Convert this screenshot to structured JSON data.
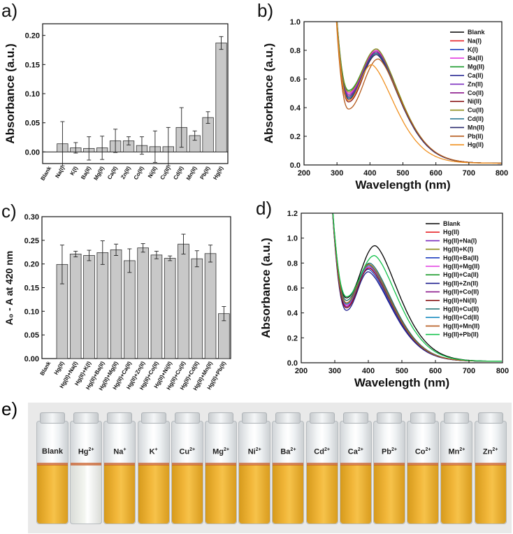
{
  "panels": {
    "a": {
      "label": "a)",
      "chart_data": {
        "type": "bar",
        "ylabel": "Absorbance (a.u.)",
        "ylim": [
          -0.02,
          0.22
        ],
        "yticks": [
          0.0,
          0.05,
          0.1,
          0.15,
          0.2
        ],
        "ytick_labels": [
          "0.00",
          "0.05",
          "0.10",
          "0.15",
          "0.20"
        ],
        "categories": [
          "Blank",
          "Na(I)",
          "K(I)",
          "Ba(II)",
          "Mg(II)",
          "Ca(II)",
          "Zn(II)",
          "Co(II)",
          "Ni(II)",
          "Cu(II)",
          "Cd(II)",
          "Mn(II)",
          "Pb(II)",
          "Hg(II)"
        ],
        "values": [
          0.0,
          0.014,
          0.007,
          0.006,
          0.007,
          0.019,
          0.019,
          0.011,
          0.009,
          0.009,
          0.042,
          0.028,
          0.059,
          0.187
        ],
        "errors": [
          0.0,
          0.038,
          0.009,
          0.02,
          0.02,
          0.02,
          0.007,
          0.015,
          0.027,
          0.033,
          0.034,
          0.008,
          0.01,
          0.011
        ]
      }
    },
    "b": {
      "label": "b)",
      "chart_data": {
        "type": "line",
        "xlabel": "Wavelength (nm)",
        "ylabel": "Absorbance (a.u.)",
        "xlim": [
          200,
          800
        ],
        "ylim": [
          0.0,
          1.0
        ],
        "xticks": [
          200,
          300,
          400,
          500,
          600,
          700,
          800
        ],
        "yticks": [
          0.0,
          0.2,
          0.4,
          0.6,
          0.8,
          1.0
        ],
        "ytick_labels": [
          "0.0",
          "0.2",
          "0.4",
          "0.6",
          "0.8",
          "1.0"
        ],
        "series": [
          {
            "name": "Blank",
            "color": "#000000",
            "min": 0.48,
            "peak": 0.79,
            "peak_x": 420
          },
          {
            "name": "Na(I)",
            "color": "#e8262b",
            "min": 0.5,
            "peak": 0.8,
            "peak_x": 420
          },
          {
            "name": "K(I)",
            "color": "#1f3fbf",
            "min": 0.47,
            "peak": 0.79,
            "peak_x": 420
          },
          {
            "name": "Ba(II)",
            "color": "#e23ce0",
            "min": 0.5,
            "peak": 0.8,
            "peak_x": 420
          },
          {
            "name": "Mg(II)",
            "color": "#1a9a2a",
            "min": 0.52,
            "peak": 0.81,
            "peak_x": 420
          },
          {
            "name": "Ca(II)",
            "color": "#1a1a8c",
            "min": 0.46,
            "peak": 0.78,
            "peak_x": 420
          },
          {
            "name": "Zn(II)",
            "color": "#7b2fbf",
            "min": 0.49,
            "peak": 0.79,
            "peak_x": 420
          },
          {
            "name": "Co(II)",
            "color": "#8c1a8c",
            "min": 0.48,
            "peak": 0.79,
            "peak_x": 420
          },
          {
            "name": "Ni(II)",
            "color": "#8b1a1a",
            "min": 0.44,
            "peak": 0.77,
            "peak_x": 420
          },
          {
            "name": "Cu(II)",
            "color": "#8c8c1a",
            "min": 0.51,
            "peak": 0.81,
            "peak_x": 420
          },
          {
            "name": "Cd(II)",
            "color": "#1a6e8c",
            "min": 0.47,
            "peak": 0.78,
            "peak_x": 420
          },
          {
            "name": "Mn(II)",
            "color": "#2a2a6e",
            "min": 0.46,
            "peak": 0.77,
            "peak_x": 420
          },
          {
            "name": "Pb(II)",
            "color": "#b5591a",
            "min": 0.39,
            "peak": 0.74,
            "peak_x": 425
          },
          {
            "name": "Hg(II)",
            "color": "#f0901f",
            "min": 0.45,
            "peak": 0.7,
            "peak_x": 405
          }
        ]
      }
    },
    "c": {
      "label": "c)",
      "chart_data": {
        "type": "bar",
        "ylabel": "A₀ - A at 420 nm",
        "ylim": [
          0.0,
          0.3
        ],
        "yticks": [
          0.0,
          0.05,
          0.1,
          0.15,
          0.2,
          0.25,
          0.3
        ],
        "ytick_labels": [
          "0.00",
          "0.05",
          "0.10",
          "0.15",
          "0.20",
          "0.25",
          "0.30"
        ],
        "categories": [
          "Blank",
          "Hg(II)",
          "Hg(II)+Na(I)",
          "Hg(II)+K(I)",
          "Hg(II)+Ba(II)",
          "Hg(II)+Mg(II)",
          "Hg(II)+Ca(II)",
          "Hg(II)+Zn(II)",
          "Hg(II)+Co(II)",
          "Hg(II)+Ni(II)",
          "Hg(II)+Cu(II)",
          "Hg(II)+Cd(II)",
          "Hg(II)+Mn(II)",
          "Hg(II)+Pb(II)"
        ],
        "values": [
          0.0,
          0.199,
          0.221,
          0.218,
          0.224,
          0.23,
          0.207,
          0.234,
          0.219,
          0.212,
          0.242,
          0.211,
          0.222,
          0.095
        ],
        "errors": [
          0.0,
          0.041,
          0.006,
          0.011,
          0.025,
          0.012,
          0.025,
          0.009,
          0.008,
          0.005,
          0.021,
          0.017,
          0.018,
          0.015
        ]
      }
    },
    "d": {
      "label": "d)",
      "chart_data": {
        "type": "line",
        "xlabel": "Wavelength (nm)",
        "ylabel": "Absorbance (a.u.)",
        "xlim": [
          200,
          800
        ],
        "ylim": [
          0.0,
          1.2
        ],
        "xticks": [
          200,
          300,
          400,
          500,
          600,
          700,
          800
        ],
        "yticks": [
          0.0,
          0.2,
          0.4,
          0.6,
          0.8,
          1.0,
          1.2
        ],
        "ytick_labels": [
          "0.0",
          "0.2",
          "0.4",
          "0.6",
          "0.8",
          "1.0",
          "1.2"
        ],
        "series": [
          {
            "name": "Blank",
            "color": "#000000",
            "min": 0.52,
            "peak": 0.94,
            "peak_x": 420
          },
          {
            "name": "Hg(II)",
            "color": "#e8262b",
            "min": 0.47,
            "peak": 0.78,
            "peak_x": 402
          },
          {
            "name": "Hg(II)+Na(I)",
            "color": "#7b2fbf",
            "min": 0.46,
            "peak": 0.77,
            "peak_x": 402
          },
          {
            "name": "Hg(II)+K(I)",
            "color": "#8c8c1a",
            "min": 0.47,
            "peak": 0.79,
            "peak_x": 402
          },
          {
            "name": "Hg(II)+Ba(II)",
            "color": "#1f3fbf",
            "min": 0.44,
            "peak": 0.75,
            "peak_x": 400
          },
          {
            "name": "Hg(II)+Mg(II)",
            "color": "#e23ce0",
            "min": 0.46,
            "peak": 0.77,
            "peak_x": 402
          },
          {
            "name": "Hg(II)+Ca(II)",
            "color": "#1a9a2a",
            "min": 0.48,
            "peak": 0.79,
            "peak_x": 402
          },
          {
            "name": "Hg(II)+Zn(II)",
            "color": "#1a1a8c",
            "min": 0.42,
            "peak": 0.73,
            "peak_x": 400
          },
          {
            "name": "Hg(II)+Co(II)",
            "color": "#8c1a8c",
            "min": 0.45,
            "peak": 0.76,
            "peak_x": 402
          },
          {
            "name": "Hg(II)+Ni(II)",
            "color": "#8b1a1a",
            "min": 0.44,
            "peak": 0.76,
            "peak_x": 402
          },
          {
            "name": "Hg(II)+Cu(II)",
            "color": "#1a6e6e",
            "min": 0.5,
            "peak": 0.8,
            "peak_x": 404
          },
          {
            "name": "Hg(II)+Cd(II)",
            "color": "#1a8cbf",
            "min": 0.47,
            "peak": 0.78,
            "peak_x": 402
          },
          {
            "name": "Hg(II)+Mn(II)",
            "color": "#b5591a",
            "min": 0.48,
            "peak": 0.79,
            "peak_x": 402
          },
          {
            "name": "Hg(II)+Pb(II)",
            "color": "#12c24a",
            "min": 0.53,
            "peak": 0.86,
            "peak_x": 418
          }
        ]
      }
    },
    "e": {
      "label": "e)",
      "vials": [
        {
          "name": "Blank",
          "sup": "",
          "clear": false
        },
        {
          "name": "Hg",
          "sup": "2+",
          "clear": true
        },
        {
          "name": "Na",
          "sup": "+",
          "clear": false
        },
        {
          "name": "K",
          "sup": "+",
          "clear": false
        },
        {
          "name": "Cu",
          "sup": "2+",
          "clear": false
        },
        {
          "name": "Mg",
          "sup": "2+",
          "clear": false
        },
        {
          "name": "Ni",
          "sup": "2+",
          "clear": false
        },
        {
          "name": "Ba",
          "sup": "2+",
          "clear": false
        },
        {
          "name": "Cd",
          "sup": "2+",
          "clear": false
        },
        {
          "name": "Ca",
          "sup": "2+",
          "clear": false
        },
        {
          "name": "Pb",
          "sup": "2+",
          "clear": false
        },
        {
          "name": "Co",
          "sup": "2+",
          "clear": false
        },
        {
          "name": "Mn",
          "sup": "2+",
          "clear": false
        },
        {
          "name": "Zn",
          "sup": "2+",
          "clear": false
        }
      ]
    }
  },
  "colors": {
    "bar_fill": "#c8c8c8",
    "bar_stroke": "#333333",
    "liquid": "#f2b73a"
  }
}
